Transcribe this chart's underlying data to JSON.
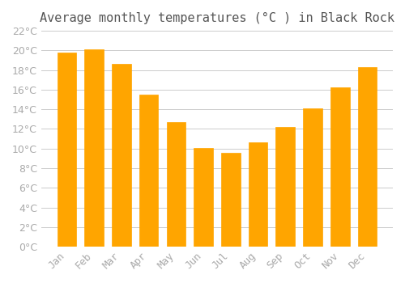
{
  "title": "Average monthly temperatures (°C ) in Black Rock",
  "months": [
    "Jan",
    "Feb",
    "Mar",
    "Apr",
    "May",
    "Jun",
    "Jul",
    "Aug",
    "Sep",
    "Oct",
    "Nov",
    "Dec"
  ],
  "values": [
    19.8,
    20.1,
    18.6,
    15.5,
    12.7,
    10.1,
    9.6,
    10.6,
    12.2,
    14.1,
    16.2,
    18.3
  ],
  "bar_color": "#FFA500",
  "bar_edge_color": "#FFA500",
  "ylim": [
    0,
    22
  ],
  "yticks": [
    0,
    2,
    4,
    6,
    8,
    10,
    12,
    14,
    16,
    18,
    20,
    22
  ],
  "grid_color": "#cccccc",
  "background_color": "#ffffff",
  "title_fontsize": 11,
  "tick_fontsize": 9,
  "tick_label_color": "#aaaaaa",
  "title_color": "#555555"
}
